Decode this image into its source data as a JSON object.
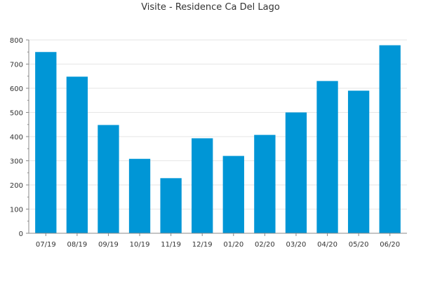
{
  "chart_data": {
    "type": "bar",
    "title": "Visite - Residence Ca Del Lago",
    "xlabel": "",
    "ylabel": "",
    "categories": [
      "07/19",
      "08/19",
      "09/19",
      "10/19",
      "11/19",
      "12/19",
      "01/20",
      "02/20",
      "03/20",
      "04/20",
      "05/20",
      "06/20"
    ],
    "values": [
      750,
      648,
      448,
      308,
      228,
      393,
      320,
      407,
      500,
      630,
      590,
      778
    ],
    "ylim": [
      0,
      800
    ],
    "yticks": [
      0,
      100,
      200,
      300,
      400,
      500,
      600,
      700,
      800
    ],
    "grid": true,
    "legend": "none",
    "colors": {
      "bar": "#0096d6",
      "grid": "#e6e6e6",
      "axis": "#888888",
      "text": "#333333"
    }
  }
}
